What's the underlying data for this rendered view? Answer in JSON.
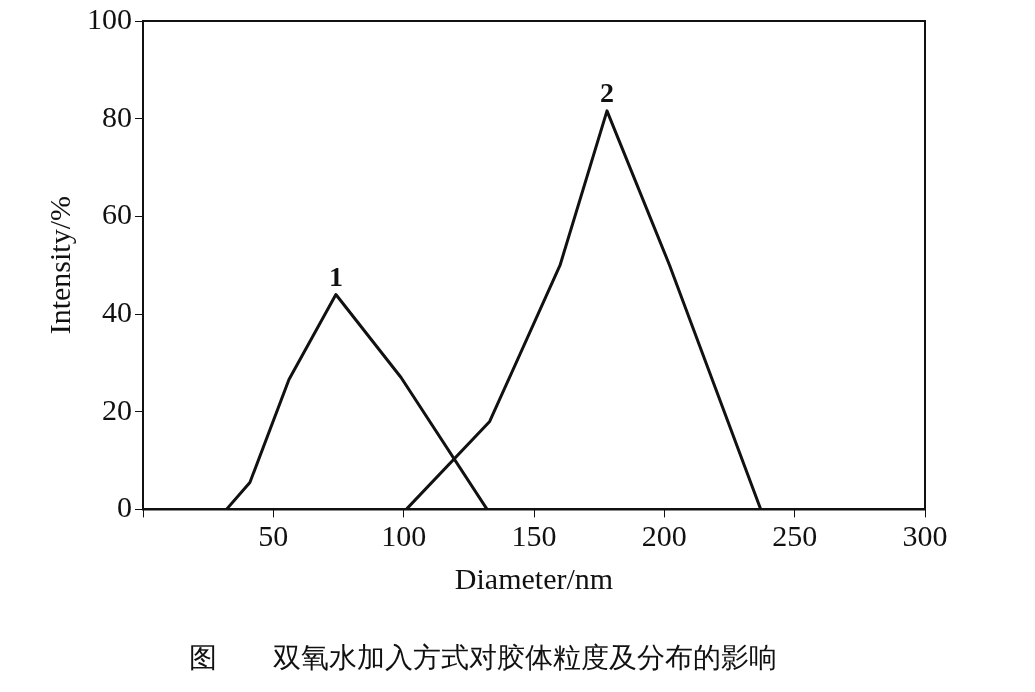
{
  "chart_data": {
    "type": "line",
    "title": "图　　双氧水加入方式对胶体粒度及分布的影响",
    "xlabel": "Diameter/nm",
    "ylabel": "Intensity/%",
    "xlim": [
      0,
      300
    ],
    "xticks": [
      {
        "value": 0,
        "label": null
      },
      50,
      100,
      150,
      200,
      250,
      300
    ],
    "ylim": [
      0,
      100
    ],
    "yticks": [
      0,
      20,
      40,
      60,
      80,
      100
    ],
    "grid": false,
    "legend": false,
    "marker": "none",
    "line_style": "solid",
    "series": [
      {
        "color": "#111111",
        "x": [
          32,
          41,
          56,
          74,
          99,
          132
        ],
        "values": [
          0,
          5.5,
          26.6,
          44,
          27,
          0
        ]
      },
      {
        "color": "#111111",
        "x": [
          101,
          133,
          160,
          178,
          202,
          237
        ],
        "values": [
          0,
          18,
          50,
          81.6,
          50,
          0
        ]
      }
    ],
    "annotations": [
      {
        "text": "1",
        "x": 74,
        "y": 44
      },
      {
        "text": "2",
        "x": 178,
        "y": 81.6
      }
    ]
  }
}
